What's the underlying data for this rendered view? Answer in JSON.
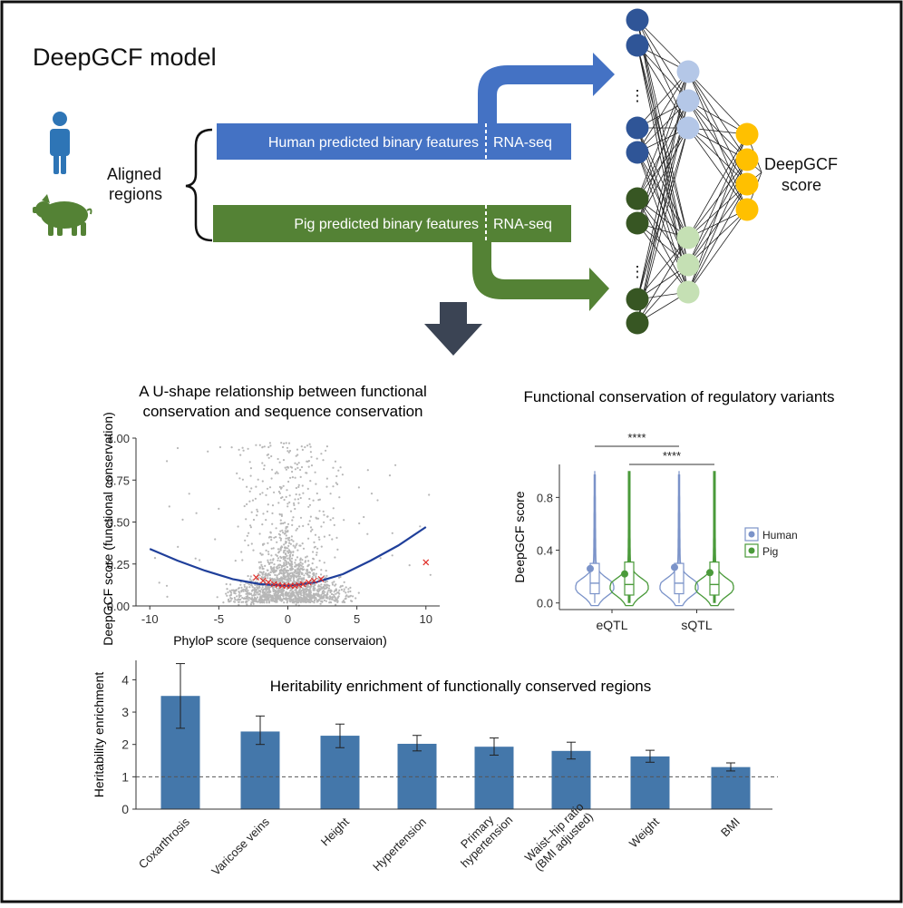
{
  "header": {
    "title": "DeepGCF model"
  },
  "inputs": {
    "aligned_label": [
      "Aligned",
      "regions"
    ],
    "human_bar": {
      "features_label": "Human predicted binary features",
      "rna_label": "RNA-seq"
    },
    "pig_bar": {
      "features_label": "Pig predicted binary features",
      "rna_label": "RNA-seq"
    },
    "icons": [
      "human-icon",
      "pig-icon"
    ]
  },
  "network": {
    "ellipsis": "⋮",
    "output_label": [
      "DeepGCF",
      "score"
    ]
  },
  "colors": {
    "human_blue": "#4472c4",
    "pig_green": "#548235",
    "dark_blue_node": "#2f5597",
    "light_blue_node": "#b4c7e7",
    "dark_green_node": "#375623",
    "light_green_node": "#c5e0b4",
    "score_node": "#ffc000",
    "human_icon": "#2e75b6",
    "pig_icon": "#548235",
    "arrow_down": "#3b4454",
    "bar_fill": "#4477aa",
    "scatter_point": "#b7b7b7",
    "trend_line": "#1f3f9a",
    "highlight_points": "#e0302a",
    "violin_human": "#7b93c9",
    "violin_pig": "#4a9a3a"
  },
  "chart_data": [
    {
      "type": "scatter",
      "title": "A U-shape relationship between functional conservation and sequence conservation",
      "xlabel": "PhyloP score (sequence conservaion)",
      "ylabel": "DeepGCF score (functional conservation)",
      "xlim": [
        -11,
        11
      ],
      "ylim": [
        0,
        1
      ],
      "xticks": [
        "-10",
        "-5",
        "0",
        "5",
        "10"
      ],
      "yticks": [
        "0.00",
        "0.25",
        "0.50",
        "0.75",
        "1.00"
      ],
      "trend_line": {
        "x": [
          -10,
          -8,
          -6,
          -4,
          -2,
          0,
          2,
          4,
          6,
          8,
          10
        ],
        "y": [
          0.34,
          0.27,
          0.21,
          0.16,
          0.13,
          0.12,
          0.14,
          0.19,
          0.27,
          0.36,
          0.47
        ]
      },
      "highlight": {
        "x": [
          -2.3,
          -1.8,
          -1.4,
          -1.0,
          -0.7,
          -0.4,
          -0.1,
          0.2,
          0.5,
          0.8,
          1.1,
          1.5,
          1.9,
          2.4,
          10.0
        ],
        "y": [
          0.17,
          0.15,
          0.14,
          0.13,
          0.125,
          0.12,
          0.12,
          0.12,
          0.12,
          0.125,
          0.13,
          0.14,
          0.15,
          0.16,
          0.26
        ]
      },
      "grid": false
    },
    {
      "type": "violin",
      "title": "Functional conservation of regulatory variants",
      "ylabel": "DeepGCF score",
      "categories": [
        "eQTL",
        "sQTL"
      ],
      "yticks": [
        "0.0",
        "0.4",
        "0.8"
      ],
      "ylim": [
        -0.05,
        1.05
      ],
      "series": [
        {
          "name": "Human",
          "median": [
            0.15,
            0.15
          ],
          "q1": [
            0.07,
            0.07
          ],
          "q3": [
            0.3,
            0.3
          ],
          "mean": [
            0.26,
            0.27
          ],
          "max": [
            1.0,
            1.0
          ]
        },
        {
          "name": "Pig",
          "median": [
            0.14,
            0.14
          ],
          "q1": [
            0.06,
            0.06
          ],
          "q3": [
            0.31,
            0.31
          ],
          "mean": [
            0.22,
            0.23
          ],
          "max": [
            1.0,
            1.0
          ]
        }
      ],
      "significance": [
        {
          "label": "****",
          "from": "eQTL Human",
          "to": "sQTL Human"
        },
        {
          "label": "****",
          "from": "eQTL Pig",
          "to": "sQTL Pig"
        }
      ],
      "legend": "right"
    },
    {
      "type": "bar",
      "title": "Heritability enrichment of functionally conserved regions",
      "ylabel": "Heritability enrichment",
      "categories": [
        "Coxarthrosis",
        "Varicose veins",
        "Height",
        "Hypertension",
        "Primary\nhypertension",
        "Waist–hip ratio\n(BMI adjusted)",
        "Weight",
        "BMI"
      ],
      "values": [
        3.5,
        2.4,
        2.27,
        2.02,
        1.93,
        1.8,
        1.63,
        1.3
      ],
      "error_low": [
        2.5,
        2.0,
        1.9,
        1.8,
        1.67,
        1.55,
        1.45,
        1.18
      ],
      "error_high": [
        4.5,
        2.88,
        2.63,
        2.28,
        2.2,
        2.07,
        1.82,
        1.43
      ],
      "reference_line": 1,
      "ylim": [
        0,
        4.6
      ],
      "yticks": [
        "0",
        "1",
        "2",
        "3",
        "4"
      ]
    }
  ]
}
